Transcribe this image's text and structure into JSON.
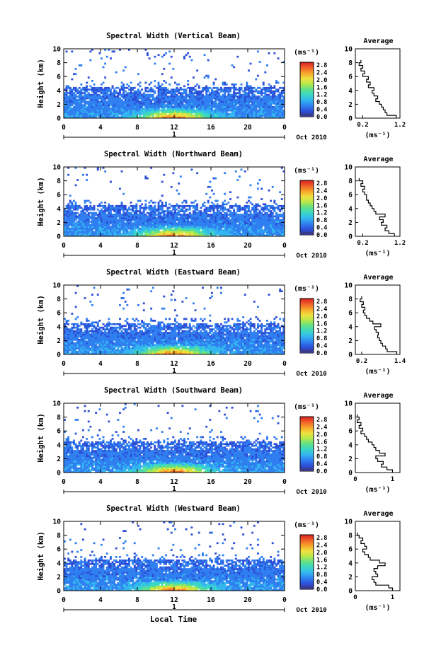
{
  "bottom_axis_label": "Local Time",
  "colors": {
    "scale": [
      "#3a3a8c",
      "#2d4fd8",
      "#2f7ff0",
      "#33b5f0",
      "#3ad6c8",
      "#5fe08a",
      "#b4e84a",
      "#f0e040",
      "#f7a52a",
      "#f0602a",
      "#d72020"
    ],
    "profile_line": "#000000",
    "axis": "#000000",
    "background": "#ffffff"
  },
  "chart_data": [
    {
      "type": "heatmap",
      "title": "Spectral Width (Vertical Beam)",
      "ylabel": "Height (km)",
      "xlim": [
        0,
        24
      ],
      "ylim": [
        0,
        10
      ],
      "x_ticks": [
        "0",
        "4",
        "8",
        "12",
        "16",
        "20",
        "0"
      ],
      "y_ticks": [
        "0",
        "2",
        "4",
        "6",
        "8",
        "10"
      ],
      "date_marker": "1",
      "date_label": "Oct 2010",
      "colorbar_label": "(ms⁻¹)",
      "colorbar_ticks": [
        "0.0",
        "0.4",
        "0.8",
        "1.2",
        "1.6",
        "2.0",
        "2.4",
        "2.8"
      ],
      "profile": {
        "title": "Average",
        "xlabel": "(ms⁻¹)",
        "xlim": [
          0,
          1.2
        ],
        "x_ticks": [
          "0.2",
          "1.2"
        ],
        "y_ticks": [
          "0",
          "2",
          "4",
          "6",
          "8",
          "10"
        ],
        "heights": [
          0.2,
          0.6,
          1.0,
          1.4,
          1.8,
          2.2,
          2.6,
          3.0,
          3.4,
          3.8,
          4.2,
          4.6,
          5.0,
          5.4,
          5.8,
          6.2,
          6.6,
          7.0,
          7.4,
          7.8,
          8.2
        ],
        "values": [
          1.1,
          0.85,
          0.8,
          0.75,
          0.7,
          0.65,
          0.55,
          0.6,
          0.5,
          0.45,
          0.5,
          0.35,
          0.4,
          0.3,
          0.35,
          0.2,
          0.25,
          0.15,
          0.2,
          0.1,
          0.15
        ]
      }
    },
    {
      "type": "heatmap",
      "title": "Spectral Width (Northward Beam)",
      "ylabel": "Height (km)",
      "xlim": [
        0,
        24
      ],
      "ylim": [
        0,
        10
      ],
      "x_ticks": [
        "0",
        "4",
        "8",
        "12",
        "16",
        "20",
        "0"
      ],
      "y_ticks": [
        "0",
        "2",
        "4",
        "6",
        "8",
        "10"
      ],
      "date_marker": "1",
      "date_label": "Oct 2010",
      "colorbar_label": "(ms⁻¹)",
      "colorbar_ticks": [
        "0.0",
        "0.4",
        "0.8",
        "1.2",
        "1.6",
        "2.0",
        "2.4",
        "2.8"
      ],
      "profile": {
        "title": "Average",
        "xlabel": "(ms⁻¹)",
        "xlim": [
          0,
          1.2
        ],
        "x_ticks": [
          "0.2",
          "1.2"
        ],
        "y_ticks": [
          "0",
          "2",
          "4",
          "6",
          "8",
          "10"
        ],
        "heights": [
          0.2,
          0.6,
          1.0,
          1.4,
          1.8,
          2.2,
          2.6,
          3.0,
          3.4,
          3.8,
          4.2,
          4.6,
          5.0,
          5.4,
          5.8,
          6.2,
          6.6,
          7.0,
          7.4,
          7.8,
          8.2
        ],
        "values": [
          1.05,
          0.9,
          0.8,
          0.85,
          0.7,
          0.75,
          0.65,
          0.8,
          0.55,
          0.5,
          0.45,
          0.4,
          0.35,
          0.3,
          0.3,
          0.25,
          0.2,
          0.25,
          0.15,
          0.2,
          0.1
        ]
      }
    },
    {
      "type": "heatmap",
      "title": "Spectral Width (Eastward Beam)",
      "ylabel": "Height (km)",
      "xlim": [
        0,
        24
      ],
      "ylim": [
        0,
        10
      ],
      "x_ticks": [
        "0",
        "4",
        "8",
        "12",
        "16",
        "20",
        "0"
      ],
      "y_ticks": [
        "0",
        "2",
        "4",
        "6",
        "8",
        "10"
      ],
      "date_marker": "1",
      "date_label": "Oct 2010",
      "colorbar_label": "(ms⁻¹)",
      "colorbar_ticks": [
        "0.0",
        "0.4",
        "0.8",
        "1.2",
        "1.6",
        "2.0",
        "2.4",
        "2.8"
      ],
      "profile": {
        "title": "Average",
        "xlabel": "(ms⁻¹)",
        "xlim": [
          0,
          1.4
        ],
        "x_ticks": [
          "0.2",
          "1.4"
        ],
        "y_ticks": [
          "0",
          "2",
          "4",
          "6",
          "8",
          "10"
        ],
        "heights": [
          0.2,
          0.6,
          1.0,
          1.4,
          1.8,
          2.2,
          2.6,
          3.0,
          3.4,
          3.8,
          4.2,
          4.6,
          5.0,
          5.4,
          5.8,
          6.2,
          6.6,
          7.0,
          7.4,
          7.8,
          8.2
        ],
        "values": [
          1.3,
          1.0,
          0.95,
          0.85,
          0.8,
          0.75,
          0.7,
          0.72,
          0.65,
          0.6,
          0.8,
          0.55,
          0.45,
          0.35,
          0.3,
          0.25,
          0.3,
          0.2,
          0.25,
          0.15,
          0.2
        ]
      }
    },
    {
      "type": "heatmap",
      "title": "Spectral Width (Southward Beam)",
      "ylabel": "Height (km)",
      "xlim": [
        0,
        24
      ],
      "ylim": [
        0,
        10
      ],
      "x_ticks": [
        "0",
        "4",
        "8",
        "12",
        "16",
        "20",
        "0"
      ],
      "y_ticks": [
        "0",
        "2",
        "4",
        "6",
        "8",
        "10"
      ],
      "date_marker": "1",
      "date_label": "Oct 2010",
      "colorbar_label": "(ms⁻¹)",
      "colorbar_ticks": [
        "0.0",
        "0.4",
        "0.8",
        "1.2",
        "1.6",
        "2.0",
        "2.4",
        "2.8"
      ],
      "profile": {
        "title": "Average",
        "xlabel": "(ms⁻¹)",
        "xlim": [
          0,
          1.2
        ],
        "x_ticks": [
          "0",
          "1"
        ],
        "y_ticks": [
          "0",
          "2",
          "4",
          "6",
          "8",
          "10"
        ],
        "heights": [
          0.2,
          0.6,
          1.0,
          1.4,
          1.8,
          2.2,
          2.6,
          3.0,
          3.4,
          3.8,
          4.2,
          4.6,
          5.0,
          5.4,
          5.8,
          6.2,
          6.6,
          7.0,
          7.4,
          7.8,
          8.2
        ],
        "values": [
          1.0,
          0.85,
          0.7,
          0.75,
          0.6,
          0.55,
          0.8,
          0.65,
          0.55,
          0.5,
          0.45,
          0.35,
          0.3,
          0.25,
          0.15,
          0.2,
          0.1,
          0.15,
          0.05,
          0.1,
          0.05
        ]
      }
    },
    {
      "type": "heatmap",
      "title": "Spectral Width (Westward Beam)",
      "ylabel": "Height (km)",
      "xlim": [
        0,
        24
      ],
      "ylim": [
        0,
        10
      ],
      "x_ticks": [
        "0",
        "4",
        "8",
        "12",
        "16",
        "20",
        "0"
      ],
      "y_ticks": [
        "0",
        "2",
        "4",
        "6",
        "8",
        "10"
      ],
      "date_marker": "1",
      "date_label": "Oct 2010",
      "colorbar_label": "(ms⁻¹)",
      "colorbar_ticks": [
        "0.0",
        "0.4",
        "0.8",
        "1.2",
        "1.6",
        "2.0",
        "2.4",
        "2.8"
      ],
      "profile": {
        "title": "Average",
        "xlabel": "(ms⁻¹)",
        "xlim": [
          0,
          1.2
        ],
        "x_ticks": [
          "0",
          "1"
        ],
        "y_ticks": [
          "0",
          "2",
          "4",
          "6",
          "8",
          "10"
        ],
        "heights": [
          0.2,
          0.6,
          1.0,
          1.4,
          1.8,
          2.2,
          2.6,
          3.0,
          3.4,
          3.8,
          4.2,
          4.6,
          5.0,
          5.4,
          5.8,
          6.2,
          6.6,
          7.0,
          7.4,
          7.8,
          8.2
        ],
        "values": [
          1.0,
          0.9,
          0.55,
          0.5,
          0.45,
          0.6,
          0.55,
          0.5,
          0.6,
          0.8,
          0.65,
          0.4,
          0.35,
          0.25,
          0.2,
          0.3,
          0.25,
          0.15,
          0.2,
          0.1,
          0.05
        ]
      }
    }
  ]
}
